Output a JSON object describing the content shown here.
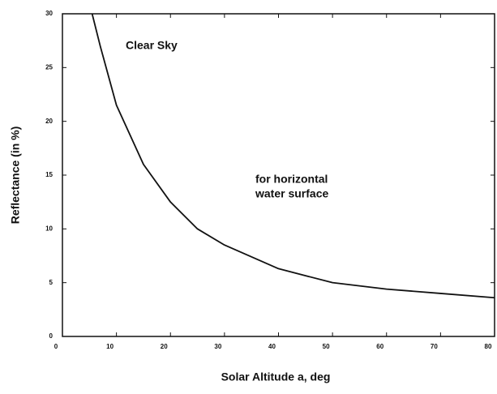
{
  "chart_data": {
    "type": "line",
    "x_label": "Solar Altitude a, deg",
    "y_label": "Reflectance (in %)",
    "annotations": [
      [
        "Clear Sky"
      ],
      [
        "for horizontal",
        "water surface"
      ]
    ],
    "x": [
      5.5,
      7,
      10,
      15,
      20,
      25,
      30,
      40,
      50,
      60,
      70,
      80
    ],
    "values": [
      30,
      27,
      21.5,
      16,
      12.5,
      10,
      8.5,
      6.3,
      5,
      4.4,
      4,
      3.6
    ],
    "color": "#111111",
    "xlim": [
      0,
      80
    ],
    "xticks": [
      0,
      10,
      20,
      30,
      40,
      50,
      60,
      70,
      80
    ],
    "ylim": [
      0,
      30
    ],
    "yticks": [
      0,
      5,
      10,
      15,
      20,
      25,
      30
    ],
    "grid": false
  }
}
